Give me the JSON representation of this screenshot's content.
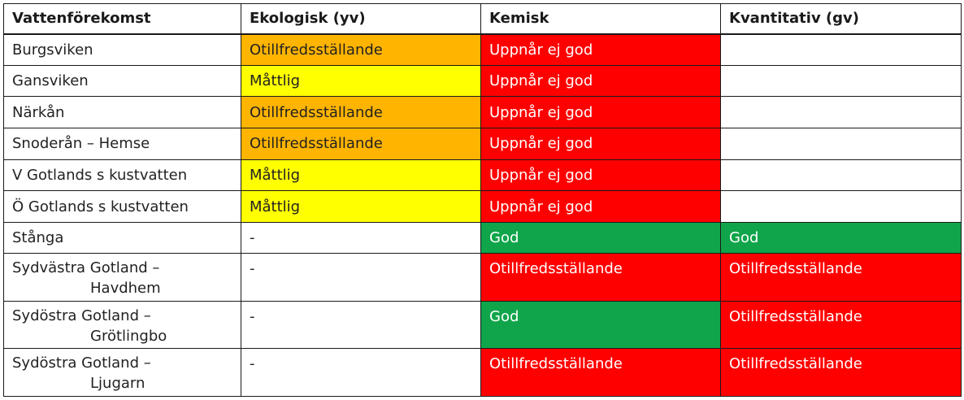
{
  "colors": {
    "orange": "#FFB400",
    "yellow": "#FFFF00",
    "red": "#FF0000",
    "green": "#10A54A",
    "white": "#FFFFFF"
  },
  "headers": [
    "Vattenförekomst",
    "Ekologisk (yv)",
    "Kemisk",
    "Kvantitativ (gv)"
  ],
  "rows": [
    {
      "name": [
        "Burgsviken"
      ],
      "ekologisk": {
        "text": "Otillfredsställande",
        "color": "orange"
      },
      "kemisk": {
        "text": "Uppnår ej god",
        "color": "red"
      },
      "kvantitativ": {
        "text": "",
        "color": "white"
      }
    },
    {
      "name": [
        "Gansviken"
      ],
      "ekologisk": {
        "text": "Måttlig",
        "color": "yellow"
      },
      "kemisk": {
        "text": "Uppnår ej god",
        "color": "red"
      },
      "kvantitativ": {
        "text": "",
        "color": "white"
      }
    },
    {
      "name": [
        "Närkån"
      ],
      "ekologisk": {
        "text": "Otillfredsställande",
        "color": "orange"
      },
      "kemisk": {
        "text": "Uppnår ej god",
        "color": "red"
      },
      "kvantitativ": {
        "text": "",
        "color": "white"
      }
    },
    {
      "name": [
        "Snoderån – Hemse"
      ],
      "ekologisk": {
        "text": "Otillfredsställande",
        "color": "orange"
      },
      "kemisk": {
        "text": "Uppnår ej god",
        "color": "red"
      },
      "kvantitativ": {
        "text": "",
        "color": "white"
      }
    },
    {
      "name": [
        "V Gotlands s kustvatten"
      ],
      "ekologisk": {
        "text": "Måttlig",
        "color": "yellow"
      },
      "kemisk": {
        "text": "Uppnår ej god",
        "color": "red"
      },
      "kvantitativ": {
        "text": "",
        "color": "white"
      }
    },
    {
      "name": [
        "Ö Gotlands s kustvatten"
      ],
      "ekologisk": {
        "text": "Måttlig",
        "color": "yellow"
      },
      "kemisk": {
        "text": "Uppnår ej god",
        "color": "red"
      },
      "kvantitativ": {
        "text": "",
        "color": "white"
      }
    },
    {
      "name": [
        "Stånga"
      ],
      "ekologisk": {
        "text": "-",
        "color": "white"
      },
      "kemisk": {
        "text": "God",
        "color": "green"
      },
      "kvantitativ": {
        "text": "God",
        "color": "green"
      }
    },
    {
      "name": [
        "Sydvästra Gotland –",
        "Havdhem"
      ],
      "ekologisk": {
        "text": "-",
        "color": "white"
      },
      "kemisk": {
        "text": "Otillfredsställande",
        "color": "red"
      },
      "kvantitativ": {
        "text": "Otillfredsställande",
        "color": "red"
      }
    },
    {
      "name": [
        "Sydöstra Gotland –",
        "Grötlingbo"
      ],
      "ekologisk": {
        "text": "-",
        "color": "white"
      },
      "kemisk": {
        "text": "God",
        "color": "green"
      },
      "kvantitativ": {
        "text": "Otillfredsställande",
        "color": "red"
      }
    },
    {
      "name": [
        "Sydöstra Gotland –",
        "Ljugarn"
      ],
      "ekologisk": {
        "text": "-",
        "color": "white"
      },
      "kemisk": {
        "text": "Otillfredsställande",
        "color": "red"
      },
      "kvantitativ": {
        "text": "Otillfredsställande",
        "color": "red"
      }
    }
  ]
}
